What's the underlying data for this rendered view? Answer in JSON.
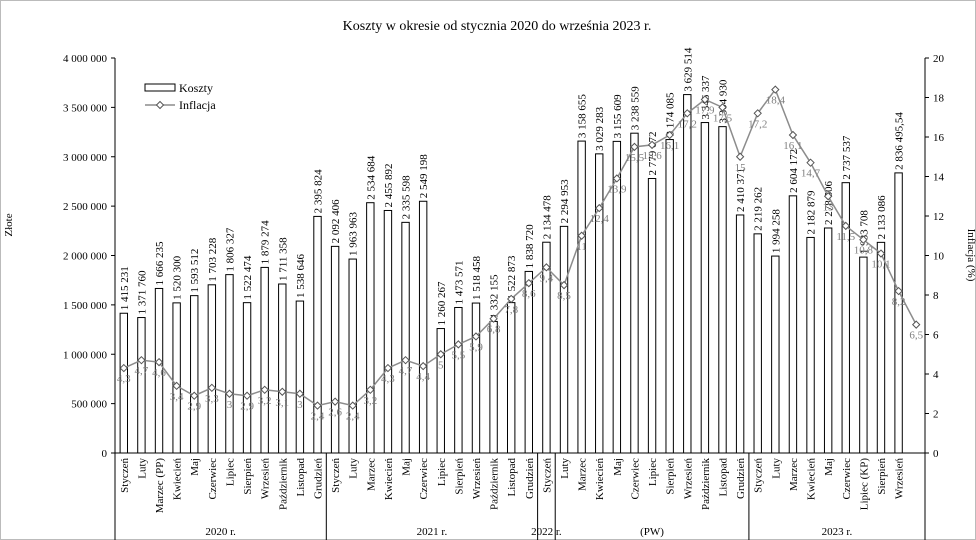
{
  "chart_data": {
    "type": "bar-line",
    "title": "Koszty w okresie od stycznia 2020 do września 2023 r.",
    "y_label": "Złote",
    "y2_label": "Inflacja (%)",
    "groups": [
      {
        "label": "2020 r.",
        "categories": [
          "Styczeń",
          "Luty",
          "Marzec (PP)",
          "Kwiecień",
          "Maj",
          "Czerwiec",
          "Lipiec",
          "Sierpień",
          "Wrzesień",
          "Październik",
          "Listopad",
          "Grudzień"
        ]
      },
      {
        "label": "2021 r.",
        "categories": [
          "Styczeń",
          "Luty",
          "Marzec",
          "Kwiecień",
          "Maj",
          "Czerwiec",
          "Lipiec",
          "Sierpień",
          "Wrzesień",
          "Październik",
          "Listopad",
          "Grudzień"
        ]
      },
      {
        "label": "2022 r.",
        "categories": [
          "Styczeń"
        ]
      },
      {
        "label": "(PW)",
        "categories": [
          "Luty",
          "Marzec",
          "Kwiecień",
          "Maj",
          "Czerwiec",
          "Lipiec",
          "Sierpień",
          "Wrzesień",
          "Październik",
          "Listopad",
          "Grudzień"
        ]
      },
      {
        "label": "2023 r.",
        "categories": [
          "Styczeń",
          "Luty",
          "Marzec",
          "Kwiecień",
          "Maj",
          "Czerwiec",
          "Lipiec (KP)",
          "Sierpień",
          "Wrzesień",
          null
        ]
      }
    ],
    "series": [
      {
        "name": "Koszty",
        "type": "bar",
        "color": "#ffffff",
        "stroke": "#000000",
        "values": [
          1415231,
          1371760,
          1666235,
          1520300,
          1593512,
          1703228,
          1806327,
          1522474,
          1879274,
          1711358,
          1538646,
          2395824,
          2092406,
          1963963,
          2534684,
          2455892,
          2335598,
          2549198,
          1260267,
          1473571,
          1518458,
          1332155,
          1522873,
          1838720,
          2134478,
          2294953,
          3158655,
          3029283,
          3155609,
          3238559,
          2779672,
          3174085,
          3629514,
          3346337,
          3304930,
          2410371,
          2219262,
          1994258,
          2604172,
          2182879,
          2278506,
          2737537,
          1983708,
          2133086,
          2836495.54,
          null
        ],
        "value_labels": [
          "1 415 231",
          "1 371 760",
          "1 666 235",
          "1 520 300",
          "1 593 512",
          "1 703 228",
          "1 806 327",
          "1 522 474",
          "1 879 274",
          "1 711 358",
          "1 538 646",
          "2 395 824",
          "2 092 406",
          "1 963 963",
          "2 534 684",
          "2 455 892",
          "2 335 598",
          "2 549 198",
          "1 260 267",
          "1 473 571",
          "1 518 458",
          "1 332 155",
          "1 522 873",
          "1 838 720",
          "2 134 478",
          "2 294 953",
          "3 158 655",
          "3 029 283",
          "3 155 609",
          "3 238 559",
          "2 779 672",
          "3 174 085",
          "3 629 514",
          "3 346 337",
          "3 304 930",
          "2 410 371",
          "2 219 262",
          "1 994 258",
          "2 604 172",
          "2 182 879",
          "2 278 506",
          "2 737 537",
          "1 983 708",
          "2 133 086",
          "2 836 495,54",
          null
        ]
      },
      {
        "name": "Inflacja",
        "type": "line",
        "axis": "y2",
        "color": "#8c8c8c",
        "values": [
          4.3,
          4.7,
          4.6,
          3.4,
          2.9,
          3.3,
          3.0,
          2.9,
          3.2,
          3.1,
          3.0,
          2.4,
          2.6,
          2.4,
          3.2,
          4.3,
          4.7,
          4.4,
          5.0,
          5.5,
          5.9,
          6.8,
          7.8,
          8.6,
          9.4,
          8.5,
          11.0,
          12.4,
          13.9,
          15.5,
          15.6,
          16.1,
          17.2,
          17.9,
          17.5,
          15.0,
          17.2,
          18.4,
          16.1,
          14.7,
          13.0,
          11.5,
          10.8,
          10.1,
          8.2,
          6.5
        ],
        "value_labels": [
          "4,3",
          "4,7",
          "4,6",
          "3,4",
          "2,9",
          "3,3",
          "3",
          "2,9",
          "3,2",
          "3,1",
          "3",
          "2,4",
          "2,6",
          "2,4",
          "3,2",
          "4,3",
          "4,7",
          "4,4",
          "5",
          "5,5",
          "5,9",
          "6,8",
          "7,8",
          "8,6",
          "9,4",
          "8,5",
          "11",
          "12,4",
          "13,9",
          "15,5",
          "15,6",
          "16,1",
          "17,2",
          "17,9",
          "17,5",
          "15",
          "17,2",
          "18,4",
          "16,1",
          "14,7",
          "13",
          "11,5",
          "10,8",
          "10,1",
          "8,2",
          "6,5"
        ]
      }
    ],
    "ylim": [
      0,
      4000000
    ],
    "yticks": [
      0,
      {
        "value": 500000,
        "label": "500 000"
      },
      {
        "value": 1000000,
        "label": "1 000 000"
      },
      {
        "value": 1500000,
        "label": "1 500 000"
      },
      {
        "value": 2000000,
        "label": "2 000 000"
      },
      {
        "value": 2500000,
        "label": "2 500 000"
      },
      {
        "value": 3000000,
        "label": "3 000 000"
      },
      {
        "value": 3500000,
        "label": "3 500 000"
      },
      {
        "value": 4000000,
        "label": "4 000 000"
      }
    ],
    "y2lim": [
      0,
      20
    ],
    "y2ticks": [
      0,
      2,
      4,
      6,
      8,
      10,
      12,
      14,
      16,
      18,
      20
    ],
    "legend": "top-left",
    "grid": false
  }
}
